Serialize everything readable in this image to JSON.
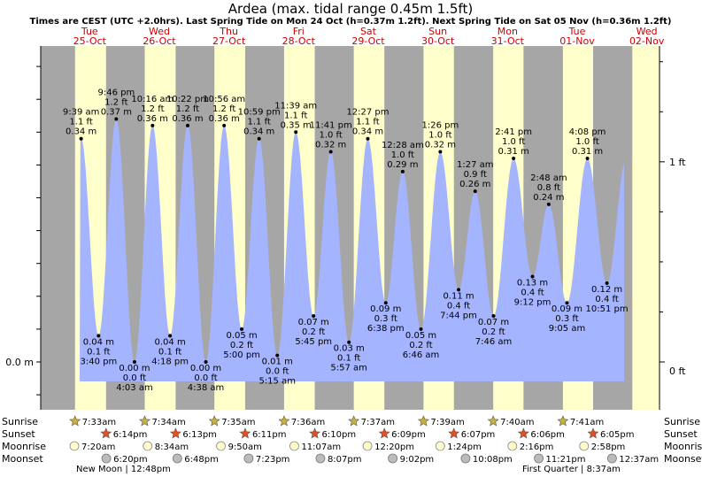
{
  "chart_data": {
    "type": "area",
    "title": "Ardea (max. tidal range 0.45m 1.5ft)",
    "subtitle": "Times are CEST (UTC +2.0hrs). Last Spring Tide on Mon 24 Oct (h=0.37m 1.2ft). Next Spring Tide on Sat 05 Nov (h=0.36m 1.2ft)",
    "colors": {
      "night": "#a6a6a6",
      "day": "#ffffcc",
      "water": "#a5b4ff",
      "day_label": "#cc0000",
      "text": "#000000"
    },
    "y_range_m": [
      -0.05,
      0.5
    ],
    "axis": {
      "left_tick_label": "0.0 m",
      "right_tick_labels": [
        "0 ft",
        "1 ft"
      ]
    },
    "days": [
      {
        "weekday": "Tue",
        "date": "25-Oct",
        "sunrise": "7:33am",
        "sunset": "6:14pm",
        "moonrise": "7:20am",
        "moonset": "6:20pm"
      },
      {
        "weekday": "Wed",
        "date": "26-Oct",
        "sunrise": "7:34am",
        "sunset": "6:13pm",
        "moonrise": "8:34am",
        "moonset": "6:48pm"
      },
      {
        "weekday": "Thu",
        "date": "27-Oct",
        "sunrise": "7:35am",
        "sunset": "6:11pm",
        "moonrise": "9:50am",
        "moonset": "7:23pm"
      },
      {
        "weekday": "Fri",
        "date": "28-Oct",
        "sunrise": "7:36am",
        "sunset": "6:10pm",
        "moonrise": "11:07am",
        "moonset": "8:07pm"
      },
      {
        "weekday": "Sat",
        "date": "29-Oct",
        "sunrise": "7:37am",
        "sunset": "6:09pm",
        "moonrise": "12:20pm",
        "moonset": "9:02pm"
      },
      {
        "weekday": "Sun",
        "date": "30-Oct",
        "sunrise": "7:39am",
        "sunset": "6:07pm",
        "moonrise": "1:24pm",
        "moonset": "10:08pm"
      },
      {
        "weekday": "Mon",
        "date": "31-Oct",
        "sunrise": "7:40am",
        "sunset": "6:06pm",
        "moonrise": "2:16pm",
        "moonset": "11:21pm"
      },
      {
        "weekday": "Tue",
        "date": "01-Nov",
        "sunrise": "7:41am",
        "sunset": "6:05pm",
        "moonrise": "2:58pm",
        "moonset": "12:37am"
      },
      {
        "weekday": "Wed",
        "date": "02-Nov"
      }
    ],
    "tides": [
      {
        "time": "9:39 am",
        "ft": "1.1 ft",
        "m": "0.34 m",
        "value": 0.34,
        "type": "high"
      },
      {
        "time": "3:40 pm",
        "ft": "0.1 ft",
        "m": "0.04 m",
        "value": 0.04,
        "type": "low"
      },
      {
        "time": "9:46 pm",
        "ft": "1.2 ft",
        "m": "0.37 m",
        "value": 0.37,
        "type": "high"
      },
      {
        "time": "4:03 am",
        "ft": "0.0 ft",
        "m": "0.00 m",
        "value": 0.0,
        "type": "low"
      },
      {
        "time": "10:16 am",
        "ft": "1.2 ft",
        "m": "0.36 m",
        "value": 0.36,
        "type": "high"
      },
      {
        "time": "4:18 pm",
        "ft": "0.1 ft",
        "m": "0.04 m",
        "value": 0.04,
        "type": "low"
      },
      {
        "time": "10:22 pm",
        "ft": "1.2 ft",
        "m": "0.36 m",
        "value": 0.36,
        "type": "high"
      },
      {
        "time": "4:38 am",
        "ft": "0.0 ft",
        "m": "0.00 m",
        "value": 0.0,
        "type": "low"
      },
      {
        "time": "10:56 am",
        "ft": "1.2 ft",
        "m": "0.36 m",
        "value": 0.36,
        "type": "high"
      },
      {
        "time": "5:00 pm",
        "ft": "0.2 ft",
        "m": "0.05 m",
        "value": 0.05,
        "type": "low"
      },
      {
        "time": "10:59 pm",
        "ft": "1.1 ft",
        "m": "0.34 m",
        "value": 0.34,
        "type": "high"
      },
      {
        "time": "5:15 am",
        "ft": "0.0 ft",
        "m": "0.01 m",
        "value": 0.01,
        "type": "low"
      },
      {
        "time": "11:39 am",
        "ft": "1.1 ft",
        "m": "0.35 m",
        "value": 0.35,
        "type": "high"
      },
      {
        "time": "5:45 pm",
        "ft": "0.2 ft",
        "m": "0.07 m",
        "value": 0.07,
        "type": "low"
      },
      {
        "time": "11:41 pm",
        "ft": "1.0 ft",
        "m": "0.32 m",
        "value": 0.32,
        "type": "high"
      },
      {
        "time": "5:57 am",
        "ft": "0.1 ft",
        "m": "0.03 m",
        "value": 0.03,
        "type": "low"
      },
      {
        "time": "12:27 pm",
        "ft": "1.1 ft",
        "m": "0.34 m",
        "value": 0.34,
        "type": "high"
      },
      {
        "time": "6:38 pm",
        "ft": "0.3 ft",
        "m": "0.09 m",
        "value": 0.09,
        "type": "low"
      },
      {
        "time": "12:28 am",
        "ft": "1.0 ft",
        "m": "0.29 m",
        "value": 0.29,
        "type": "high"
      },
      {
        "time": "6:46 am",
        "ft": "0.2 ft",
        "m": "0.05 m",
        "value": 0.05,
        "type": "low"
      },
      {
        "time": "1:26 pm",
        "ft": "1.0 ft",
        "m": "0.32 m",
        "value": 0.32,
        "type": "high"
      },
      {
        "time": "7:44 pm",
        "ft": "0.4 ft",
        "m": "0.11 m",
        "value": 0.11,
        "type": "low"
      },
      {
        "time": "1:27 am",
        "ft": "0.9 ft",
        "m": "0.26 m",
        "value": 0.26,
        "type": "high"
      },
      {
        "time": "7:46 am",
        "ft": "0.2 ft",
        "m": "0.07 m",
        "value": 0.07,
        "type": "low"
      },
      {
        "time": "2:41 pm",
        "ft": "1.0 ft",
        "m": "0.31 m",
        "value": 0.31,
        "type": "high"
      },
      {
        "time": "9:12 pm",
        "ft": "0.4 ft",
        "m": "0.13 m",
        "value": 0.13,
        "type": "low"
      },
      {
        "time": "2:48 am",
        "ft": "0.8 ft",
        "m": "0.24 m",
        "value": 0.24,
        "type": "high"
      },
      {
        "time": "9:05 am",
        "ft": "0.3 ft",
        "m": "0.09 m",
        "value": 0.09,
        "type": "low"
      },
      {
        "time": "4:08 pm",
        "ft": "1.0 ft",
        "m": "0.31 m",
        "value": 0.31,
        "type": "high"
      },
      {
        "time": "10:51 pm",
        "ft": "0.4 ft",
        "m": "0.12 m",
        "value": 0.12,
        "type": "low"
      }
    ],
    "row_labels": {
      "sunrise": "Sunrise",
      "sunset": "Sunset",
      "moonrise": "Moonrise",
      "moonset": "Moonset"
    },
    "moon_phases": [
      "New Moon | 12:48pm",
      "First Quarter | 8:37am"
    ]
  }
}
